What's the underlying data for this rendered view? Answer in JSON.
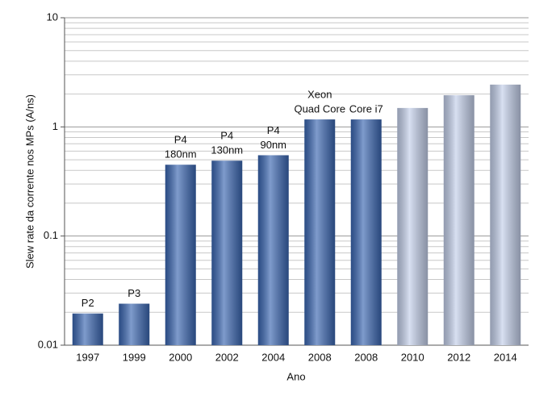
{
  "chart_data": {
    "type": "bar",
    "log_scale": true,
    "grid": true,
    "y_label": "Slew rate da corrente nos MPs (A/ns)",
    "x_label": "Ano",
    "categories": [
      "1997",
      "1999",
      "2000",
      "2002",
      "2004",
      "2008",
      "2008",
      "2010",
      "2012",
      "2014"
    ],
    "values": [
      0.0195,
      0.024,
      0.45,
      0.49,
      0.55,
      1.17,
      1.17,
      1.49,
      1.95,
      2.44
    ],
    "bar_labels": [
      [
        "P2"
      ],
      [
        "P3"
      ],
      [
        "P4",
        "180nm"
      ],
      [
        "P4",
        "130nm"
      ],
      [
        "P4",
        "90nm"
      ],
      [
        "Xeon",
        "Quad Core"
      ],
      [
        "Core i7"
      ],
      null,
      null,
      null
    ],
    "colors": [
      "#3a66b1",
      "#3a66b1",
      "#3a66b1",
      "#3a66b1",
      "#3a66b1",
      "#3a66b1",
      "#3a66b1",
      "#c3cfea",
      "#c3cfea",
      "#c3cfea"
    ],
    "ylim": [
      0.01,
      10
    ],
    "yticks": [
      0.01,
      0.1,
      1,
      10
    ],
    "minor_gridlines": [
      0.02,
      0.03,
      0.04,
      0.05,
      0.06,
      0.07,
      0.08,
      0.09,
      0.2,
      0.3,
      0.4,
      0.5,
      0.6,
      0.7,
      0.8,
      0.9,
      2,
      3,
      4,
      5,
      6,
      7,
      8,
      9
    ]
  }
}
